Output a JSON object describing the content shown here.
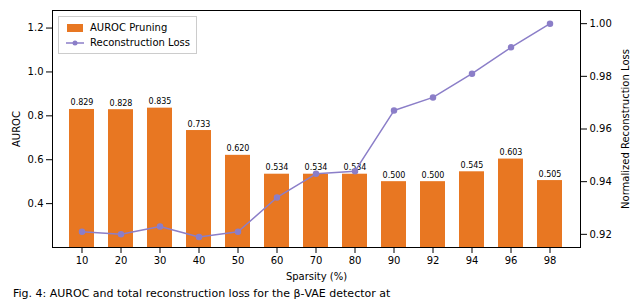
{
  "chart_data": {
    "type": "bar",
    "categories": [
      "10",
      "20",
      "30",
      "40",
      "50",
      "60",
      "70",
      "80",
      "90",
      "92",
      "94",
      "96",
      "98"
    ],
    "xlabel": "Sparsity (%)",
    "ylabel": "AUROC",
    "y2label": "Normalized Reconstruction Loss",
    "caption": "Fig. 4: AUROC and total reconstruction loss for the β-VAE detector at",
    "ylim": [
      0.2,
      1.28
    ],
    "yticks": [
      0.4,
      0.6,
      0.8,
      {
        "value": 1,
        "label": "1.0"
      },
      1.2
    ],
    "y2lim": [
      0.915,
      1.005
    ],
    "y2ticks": [
      0.92,
      0.94,
      0.96,
      0.98,
      {
        "value": 1,
        "label": "1.00"
      }
    ],
    "grid": false,
    "legend": "upper left",
    "series": [
      {
        "name": "AUROC Pruning",
        "type": "bar",
        "color": "#E87722",
        "data_labels": true,
        "values": [
          0.829,
          0.828,
          0.835,
          0.733,
          0.62,
          0.534,
          0.534,
          0.534,
          0.5,
          0.5,
          0.545,
          0.603,
          0.505
        ],
        "value_labels": [
          "0.829",
          "0.828",
          "0.835",
          "0.733",
          "0.620",
          "0.534",
          "0.534",
          "0.534",
          "0.500",
          "0.500",
          "0.545",
          "0.603",
          "0.505"
        ]
      },
      {
        "name": "Reconstruction Loss",
        "type": "line",
        "axis": "y2",
        "color": "#8B7EC8",
        "marker": "circle",
        "values": [
          0.921,
          0.92,
          0.923,
          0.919,
          0.921,
          0.934,
          0.943,
          0.944,
          0.967,
          0.972,
          0.981,
          0.991,
          1.0
        ]
      }
    ]
  }
}
